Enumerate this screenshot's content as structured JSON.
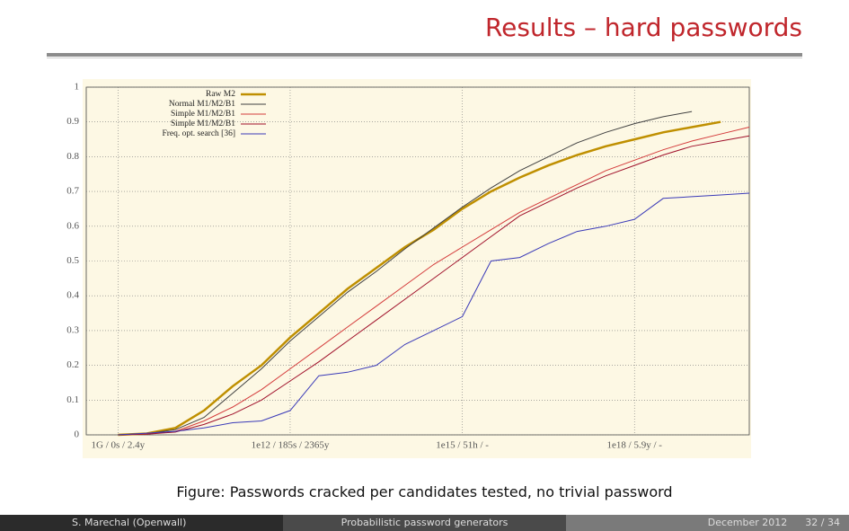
{
  "slide": {
    "title": "Results – hard passwords",
    "caption": "Figure: Passwords cracked per candidates tested, no trivial password",
    "footer": {
      "author": "S. Marechal (Openwall)",
      "talk": "Probabilistic password generators",
      "date": "December 2012",
      "page": "32 / 34"
    }
  },
  "chart_data": {
    "type": "line",
    "x_scale": "log",
    "grid": true,
    "legend": "top-left",
    "xlim": [
      280000000.0,
      1e+20
    ],
    "ylim": [
      0,
      1
    ],
    "xticks": [
      {
        "value": 1000000000.0,
        "label": "1G / 0s / 2.4y"
      },
      {
        "value": 1000000000000.0,
        "label": "1e12 / 185s / 2365y"
      },
      {
        "value": 1000000000000000.0,
        "label": "1e15 / 51h / -"
      },
      {
        "value": 1e+18,
        "label": "1e18 / 5.9y / -"
      }
    ],
    "yticks": [
      0,
      0.1,
      0.2,
      0.3,
      0.4,
      0.5,
      0.6,
      0.7,
      0.8,
      0.9,
      1
    ],
    "x": [
      1000000000.0,
      3162000000.0,
      10000000000.0,
      31620000000.0,
      100000000000.0,
      316200000000.0,
      1000000000000.0,
      3162000000000.0,
      10000000000000.0,
      31620000000000.0,
      100000000000000.0,
      316200000000000.0,
      1000000000000000.0,
      3162000000000000.0,
      1e+16,
      3.162e+16,
      1e+17,
      3.162e+17,
      1e+18,
      3.162e+18,
      1e+19,
      3.162e+19,
      1e+20
    ],
    "series": [
      {
        "name": "Raw M2",
        "color": "#bf8f00",
        "width": 2.5,
        "values": [
          0,
          0.004,
          0.02,
          0.07,
          0.14,
          0.2,
          0.28,
          0.35,
          0.42,
          0.48,
          0.54,
          0.59,
          0.65,
          0.7,
          0.74,
          0.775,
          0.805,
          0.83,
          0.85,
          0.87,
          0.885,
          0.9,
          null
        ]
      },
      {
        "name": "Normal M1/M2/B1",
        "color": "#404040",
        "width": 1,
        "values": [
          0,
          0.003,
          0.015,
          0.05,
          0.12,
          0.19,
          0.27,
          0.34,
          0.41,
          0.47,
          0.535,
          0.595,
          0.655,
          0.71,
          0.76,
          0.8,
          0.84,
          0.87,
          0.895,
          0.915,
          0.93,
          null,
          null
        ]
      },
      {
        "name": "Simple M1/M2/B1",
        "color": "#d43b3b",
        "width": 1,
        "values": [
          0,
          0.003,
          0.01,
          0.04,
          0.08,
          0.13,
          0.19,
          0.25,
          0.31,
          0.37,
          0.43,
          0.49,
          0.54,
          0.59,
          0.64,
          0.68,
          0.72,
          0.76,
          0.79,
          0.82,
          0.845,
          0.865,
          0.885
        ]
      },
      {
        "name": "Simple M1/M2/B1",
        "color": "#a0102a",
        "width": 1,
        "values": [
          0,
          0.002,
          0.008,
          0.03,
          0.06,
          0.1,
          0.155,
          0.21,
          0.27,
          0.33,
          0.39,
          0.45,
          0.51,
          0.57,
          0.63,
          0.67,
          0.71,
          0.745,
          0.775,
          0.805,
          0.83,
          0.845,
          0.86
        ]
      },
      {
        "name": "Freq. opt. search [36]",
        "color": "#3a3ab8",
        "width": 1,
        "values": [
          0,
          0.005,
          0.01,
          0.02,
          0.035,
          0.04,
          0.07,
          0.17,
          0.18,
          0.2,
          0.26,
          0.3,
          0.34,
          0.5,
          0.51,
          0.55,
          0.585,
          0.6,
          0.62,
          0.68,
          0.685,
          0.69,
          0.695
        ]
      }
    ]
  }
}
